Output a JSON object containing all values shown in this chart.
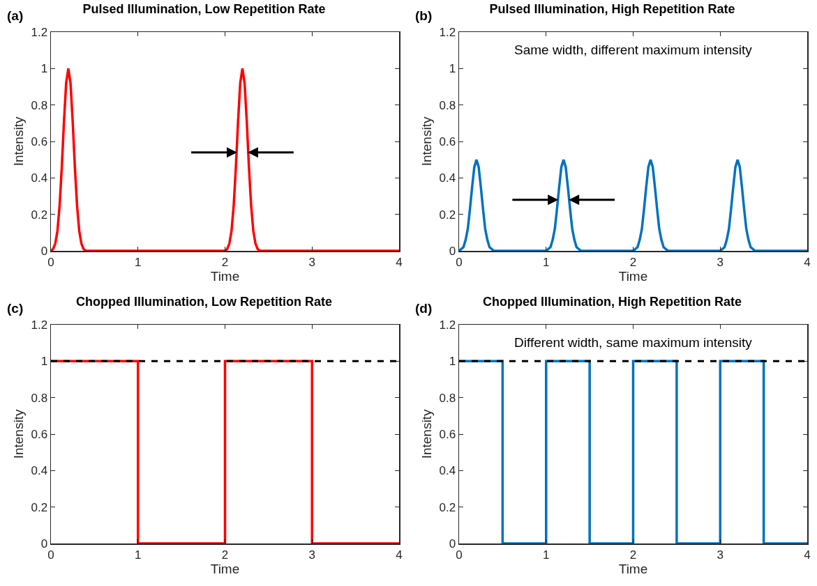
{
  "chart_data": [
    {
      "type": "line",
      "title": "Pulsed Illumination, Low Repetition Rate",
      "xlabel": "Time",
      "ylabel": "Intensity",
      "annotations": [
        "(a)"
      ],
      "xlim": [
        0,
        4
      ],
      "xticks": [
        0,
        1,
        2,
        3,
        4
      ],
      "ylim": [
        0,
        1.2
      ],
      "yticks": [
        0,
        0.2,
        0.4,
        0.6,
        0.8,
        1,
        1.2
      ],
      "grid": false,
      "marker": "none",
      "line_style": "solid",
      "series": [
        {
          "color": "#ff0000",
          "x": [
            0,
            0.025,
            0.05,
            0.075,
            0.1,
            0.125,
            0.15,
            0.175,
            0.2,
            0.225,
            0.25,
            0.275,
            0.3,
            0.325,
            0.35,
            0.375,
            0.4,
            2,
            2.025,
            2.05,
            2.075,
            2.1,
            2.125,
            2.15,
            2.175,
            2.2,
            2.225,
            2.25,
            2.275,
            2.3,
            2.325,
            2.35,
            2.375,
            2.4,
            4
          ],
          "values": [
            0,
            0.01,
            0.04,
            0.11,
            0.25,
            0.46,
            0.71,
            0.92,
            1,
            0.92,
            0.71,
            0.46,
            0.25,
            0.11,
            0.04,
            0.01,
            0,
            0,
            0.01,
            0.04,
            0.11,
            0.25,
            0.46,
            0.71,
            0.92,
            1,
            0.92,
            0.71,
            0.46,
            0.25,
            0.11,
            0.04,
            0.01,
            0,
            0
          ]
        }
      ]
    },
    {
      "type": "line",
      "title": "Pulsed Illumination, High Repetition Rate",
      "xlabel": "Time",
      "ylabel": "Intensity",
      "annotations": [
        "(b)",
        "Same width, different maximum intensity"
      ],
      "xlim": [
        0,
        4
      ],
      "xticks": [
        0,
        1,
        2,
        3,
        4
      ],
      "ylim": [
        0,
        1.2
      ],
      "yticks": [
        0,
        0.2,
        0.4,
        0.6,
        0.8,
        1,
        1.2
      ],
      "grid": false,
      "marker": "none",
      "line_style": "solid",
      "series": [
        {
          "color": "#0072bd",
          "x": [
            0,
            0.025,
            0.05,
            0.075,
            0.1,
            0.125,
            0.15,
            0.175,
            0.2,
            0.225,
            0.25,
            0.275,
            0.3,
            0.325,
            0.35,
            0.375,
            0.4,
            1,
            1.025,
            1.05,
            1.075,
            1.1,
            1.125,
            1.15,
            1.175,
            1.2,
            1.225,
            1.25,
            1.275,
            1.3,
            1.325,
            1.35,
            1.375,
            1.4,
            2,
            2.025,
            2.05,
            2.075,
            2.1,
            2.125,
            2.15,
            2.175,
            2.2,
            2.225,
            2.25,
            2.275,
            2.3,
            2.325,
            2.35,
            2.375,
            2.4,
            3,
            3.025,
            3.05,
            3.075,
            3.1,
            3.125,
            3.15,
            3.175,
            3.2,
            3.225,
            3.25,
            3.275,
            3.3,
            3.325,
            3.35,
            3.375,
            3.4,
            4
          ],
          "values": [
            0,
            0.01,
            0.02,
            0.06,
            0.12,
            0.23,
            0.35,
            0.46,
            0.5,
            0.46,
            0.35,
            0.23,
            0.12,
            0.06,
            0.02,
            0.01,
            0,
            0,
            0.01,
            0.02,
            0.06,
            0.12,
            0.23,
            0.35,
            0.46,
            0.5,
            0.46,
            0.35,
            0.23,
            0.12,
            0.06,
            0.02,
            0.01,
            0,
            0,
            0.01,
            0.02,
            0.06,
            0.12,
            0.23,
            0.35,
            0.46,
            0.5,
            0.46,
            0.35,
            0.23,
            0.12,
            0.06,
            0.02,
            0.01,
            0,
            0,
            0.01,
            0.02,
            0.06,
            0.12,
            0.23,
            0.35,
            0.46,
            0.5,
            0.46,
            0.35,
            0.23,
            0.12,
            0.06,
            0.02,
            0.01,
            0,
            0
          ]
        }
      ]
    },
    {
      "type": "line",
      "title": "Chopped Illumination, Low Repetition Rate",
      "xlabel": "Time",
      "ylabel": "Intensity",
      "annotations": [
        "(c)"
      ],
      "xlim": [
        0,
        4
      ],
      "xticks": [
        0,
        1,
        2,
        3,
        4
      ],
      "ylim": [
        0,
        1.2
      ],
      "yticks": [
        0,
        0.2,
        0.4,
        0.6,
        0.8,
        1,
        1.2
      ],
      "grid": false,
      "marker": "none",
      "line_style": "solid",
      "ref_lines": [
        {
          "axis": "y",
          "value": 1,
          "label": null,
          "color": "#000000",
          "line_style": "dashed"
        }
      ],
      "series": [
        {
          "color": "#ff0000",
          "x": [
            0,
            1,
            1,
            2,
            2,
            3,
            3,
            4
          ],
          "values": [
            1,
            1,
            0,
            0,
            1,
            1,
            0,
            0
          ]
        }
      ]
    },
    {
      "type": "line",
      "title": "Chopped Illumination, High Repetition Rate",
      "xlabel": "Time",
      "ylabel": "Intensity",
      "annotations": [
        "(d)",
        "Different width, same maximum intensity"
      ],
      "xlim": [
        0,
        4
      ],
      "xticks": [
        0,
        1,
        2,
        3,
        4
      ],
      "ylim": [
        0,
        1.2
      ],
      "yticks": [
        0,
        0.2,
        0.4,
        0.6,
        0.8,
        1,
        1.2
      ],
      "grid": false,
      "marker": "none",
      "line_style": "solid",
      "ref_lines": [
        {
          "axis": "y",
          "value": 1,
          "label": null,
          "color": "#000000",
          "line_style": "dashed"
        }
      ],
      "series": [
        {
          "color": "#0072bd",
          "x": [
            0,
            0.5,
            0.5,
            1,
            1,
            1.5,
            1.5,
            2,
            2,
            2.5,
            2.5,
            3,
            3,
            3.5,
            3.5,
            4
          ],
          "values": [
            1,
            1,
            0,
            0,
            1,
            1,
            0,
            0,
            1,
            1,
            0,
            0,
            1,
            1,
            0,
            0
          ]
        }
      ]
    }
  ]
}
